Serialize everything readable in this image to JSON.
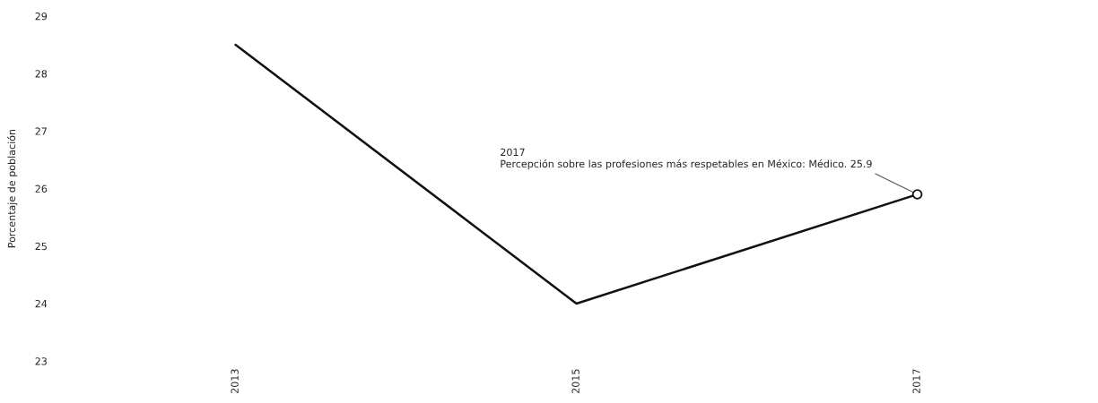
{
  "chart_data": {
    "type": "line",
    "ylabel": "Porcentaje de población",
    "categories": [
      "2013",
      "2015",
      "2017"
    ],
    "series": [
      {
        "color": "#111111",
        "values": [
          28.5,
          24.0,
          25.9
        ]
      }
    ],
    "ylim": [
      23,
      29
    ],
    "yticks": [
      23,
      24,
      25,
      26,
      27,
      28,
      29
    ],
    "grid": false,
    "legend": false,
    "marker": "none",
    "line_style": "solid",
    "annotations": [
      {
        "text": "2017\nPercepción sobre las profesiones más respetables en México: Médico. 25.9",
        "x": "2017",
        "y": 25.9
      }
    ]
  }
}
